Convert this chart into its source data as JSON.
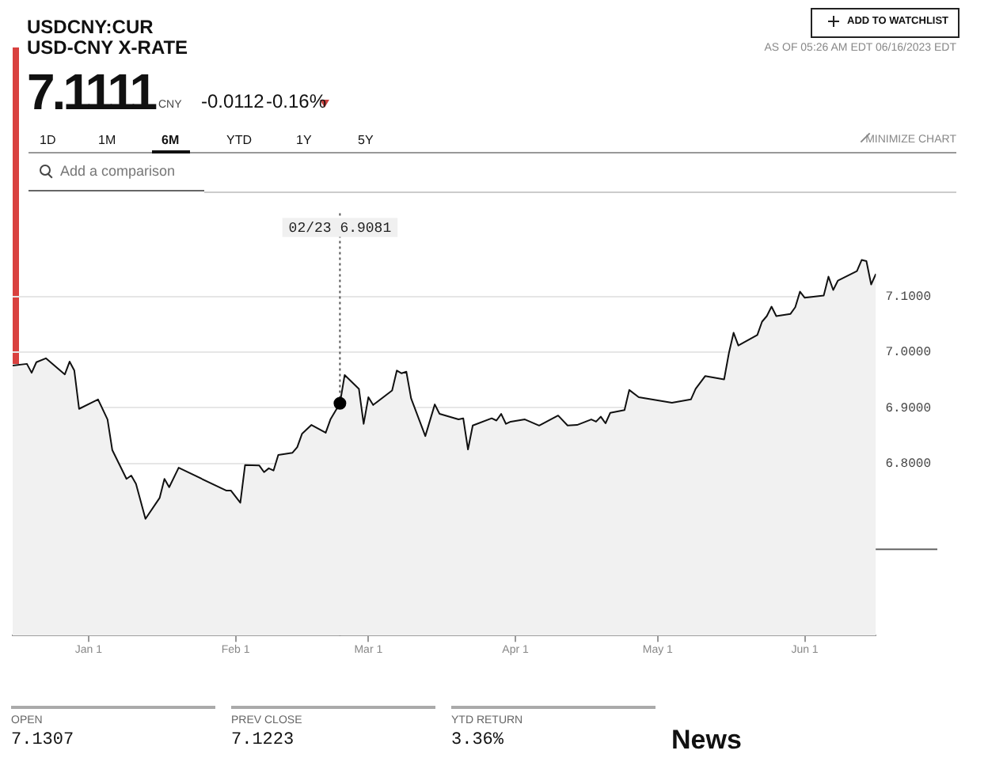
{
  "chart_data": {
    "type": "area",
    "title": "USDCNY:CUR",
    "subtitle": "USD-CNY X-RATE",
    "xlim": [
      "2022-12-16",
      "2023-06-16"
    ],
    "xticks": [
      {
        "value": "2023-01-01",
        "label": "Jan 1"
      },
      {
        "value": "2023-02-01",
        "label": "Feb 1"
      },
      {
        "value": "2023-03-01",
        "label": "Mar 1"
      },
      {
        "value": "2023-04-01",
        "label": "Apr 1"
      },
      {
        "value": "2023-05-01",
        "label": "May 1"
      },
      {
        "value": "2023-06-01",
        "label": "Jun 1"
      }
    ],
    "ylim": [
      6.49,
      7.25
    ],
    "yticks": [
      {
        "value": 6.8,
        "label": "6.8000"
      },
      {
        "value": 6.9,
        "label": "6.9000"
      },
      {
        "value": 7.0,
        "label": "7.0000"
      },
      {
        "value": 7.1,
        "label": "7.1000"
      }
    ],
    "grid": "y",
    "legend": false,
    "series": [
      {
        "color": "#111111",
        "x": [
          "2022-12-16",
          "2022-12-19",
          "2022-12-20",
          "2022-12-21",
          "2022-12-23",
          "2022-12-27",
          "2022-12-28",
          "2022-12-29",
          "2022-12-30",
          "2023-01-03",
          "2023-01-05",
          "2023-01-06",
          "2023-01-09",
          "2023-01-10",
          "2023-01-11",
          "2023-01-13",
          "2023-01-16",
          "2023-01-17",
          "2023-01-18",
          "2023-01-20",
          "2023-01-30",
          "2023-01-31",
          "2023-02-02",
          "2023-02-03",
          "2023-02-06",
          "2023-02-07",
          "2023-02-08",
          "2023-02-09",
          "2023-02-10",
          "2023-02-13",
          "2023-02-14",
          "2023-02-15",
          "2023-02-17",
          "2023-02-20",
          "2023-02-21",
          "2023-02-23",
          "2023-02-24",
          "2023-02-27",
          "2023-02-28",
          "2023-03-01",
          "2023-03-02",
          "2023-03-06",
          "2023-03-07",
          "2023-03-08",
          "2023-03-09",
          "2023-03-10",
          "2023-03-13",
          "2023-03-15",
          "2023-03-16",
          "2023-03-20",
          "2023-03-21",
          "2023-03-22",
          "2023-03-23",
          "2023-03-27",
          "2023-03-28",
          "2023-03-29",
          "2023-03-30",
          "2023-03-31",
          "2023-04-03",
          "2023-04-06",
          "2023-04-10",
          "2023-04-12",
          "2023-04-14",
          "2023-04-17",
          "2023-04-18",
          "2023-04-19",
          "2023-04-20",
          "2023-04-21",
          "2023-04-24",
          "2023-04-25",
          "2023-04-27",
          "2023-05-04",
          "2023-05-08",
          "2023-05-09",
          "2023-05-11",
          "2023-05-15",
          "2023-05-16",
          "2023-05-17",
          "2023-05-18",
          "2023-05-22",
          "2023-05-23",
          "2023-05-24",
          "2023-05-25",
          "2023-05-26",
          "2023-05-29",
          "2023-05-30",
          "2023-05-31",
          "2023-06-01",
          "2023-06-05",
          "2023-06-06",
          "2023-06-07",
          "2023-06-08",
          "2023-06-12",
          "2023-06-13",
          "2023-06-14",
          "2023-06-15",
          "2023-06-16"
        ],
        "values": [
          6.976,
          6.979,
          6.963,
          6.982,
          6.989,
          6.96,
          6.983,
          6.967,
          6.898,
          6.915,
          6.879,
          6.824,
          6.772,
          6.778,
          6.763,
          6.7,
          6.738,
          6.772,
          6.757,
          6.792,
          6.751,
          6.751,
          6.729,
          6.797,
          6.796,
          6.784,
          6.791,
          6.787,
          6.815,
          6.819,
          6.829,
          6.853,
          6.869,
          6.855,
          6.879,
          6.908,
          6.959,
          6.934,
          6.871,
          6.919,
          6.905,
          6.931,
          6.967,
          6.962,
          6.965,
          6.917,
          6.849,
          6.906,
          6.889,
          6.879,
          6.881,
          6.825,
          6.868,
          6.881,
          6.877,
          6.889,
          6.871,
          6.875,
          6.879,
          6.868,
          6.886,
          6.868,
          6.869,
          6.879,
          6.875,
          6.884,
          6.872,
          6.891,
          6.896,
          6.932,
          6.919,
          6.909,
          6.915,
          6.934,
          6.957,
          6.951,
          6.998,
          7.035,
          7.012,
          7.031,
          7.055,
          7.065,
          7.082,
          7.065,
          7.069,
          7.081,
          7.109,
          7.098,
          7.102,
          7.136,
          7.112,
          7.129,
          7.146,
          7.166,
          7.164,
          7.122,
          7.141
        ]
      },
      {
        "type": "scatter",
        "color": "#000000",
        "marker": "circle",
        "x": [
          "2023-02-23"
        ],
        "values": [
          6.908
        ]
      }
    ],
    "ref_lines": [
      {
        "axis": "x",
        "value": "2023-02-23",
        "color": "#555555",
        "line_style": "dotted"
      },
      {
        "axis": "y",
        "value": 6.645,
        "color": "#666666",
        "line_style": "solid"
      }
    ],
    "annotations": [
      "7.1111",
      "CNY",
      "-0.0112",
      "-0.16%",
      "ADD TO WATCHLIST",
      "AS OF 05:26 AM EDT 06/16/2023 EDT",
      "1D",
      "1M",
      "6M",
      "YTD",
      "1Y",
      "5Y",
      "MINIMIZE CHART",
      "Add a comparison",
      "OPEN",
      "7.1307",
      "PREV CLOSE",
      "7.1223",
      "YTD RETURN",
      "3.36%",
      "News",
      "02/23 6.9081"
    ]
  }
}
